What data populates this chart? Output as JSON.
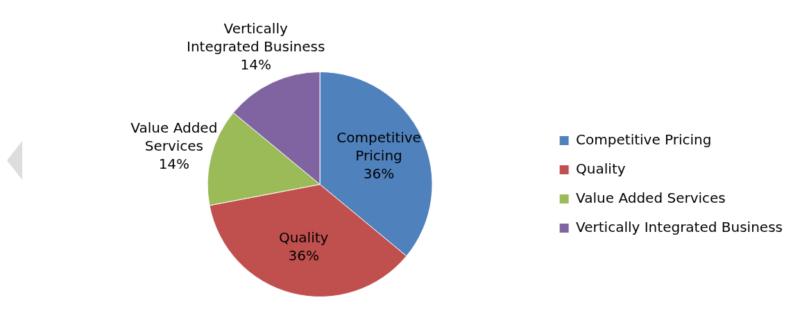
{
  "chart_data": {
    "type": "pie",
    "categories": [
      "Competitive Pricing",
      "Quality",
      "Value Added Services",
      "Vertically Integrated Business"
    ],
    "values": [
      36,
      36,
      14,
      14
    ],
    "colors": [
      "#4f81bd",
      "#c0504d",
      "#9bbb59",
      "#8064a2"
    ],
    "value_labels": [
      "36%",
      "36%",
      "14%",
      "14%"
    ],
    "legend": "right"
  }
}
